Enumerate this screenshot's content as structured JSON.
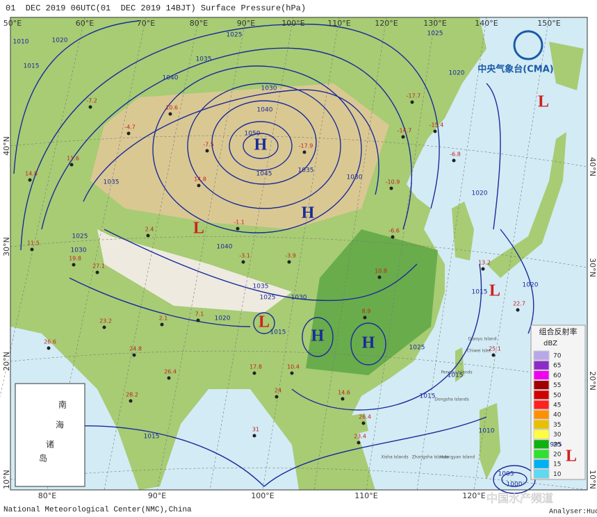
{
  "header": {
    "title": "01  DEC 2019 06UTC(01  DEC 2019 14BJT) Surface Pressure(hPa)"
  },
  "footer": {
    "credit": "National Meteorological Center(NMC),China",
    "analyst": "Analyser:HuoD",
    "watermark": "中国水产频道"
  },
  "logo": {
    "text": "中央气象台(CMA)"
  },
  "axes": {
    "lon_top": [
      "50°E",
      "60°E",
      "70°E",
      "80°E",
      "90°E",
      "100°E",
      "110°E",
      "120°E",
      "130°E",
      "140°E",
      "150°E"
    ],
    "lon_bottom": [
      "80°E",
      "90°E",
      "100°E",
      "110°E",
      "120°E"
    ],
    "lat_left": [
      "40°N",
      "30°N",
      "20°N",
      "10°N"
    ],
    "lat_right": [
      "40°N",
      "30°N",
      "20°N",
      "10°N"
    ]
  },
  "pressure_centers": [
    "H",
    "H",
    "H",
    "H",
    "L",
    "L",
    "L",
    "L",
    "L"
  ],
  "isobar_labels": [
    "1050",
    "1045",
    "1040",
    "1035",
    "1030",
    "1025",
    "1020",
    "1015",
    "1010",
    "1035",
    "1040",
    "1025",
    "1030",
    "1035",
    "1040",
    "1025",
    "1020",
    "1015",
    "1030",
    "1035",
    "1030",
    "1020",
    "1025",
    "1020",
    "1015",
    "1010",
    "1005",
    "1000",
    "995",
    "1015",
    "1020",
    "1025",
    "1015",
    "1015"
  ],
  "station_values": [
    "-7.2",
    "10.6",
    "-4.7",
    "11.6",
    "14.8",
    "-7.5",
    "-17.9",
    "-14.7",
    "-17.7",
    "-15.4",
    "-6.8",
    "14.8",
    "2.4",
    "11.5",
    "19.8",
    "27.1",
    "2.1",
    "7.1",
    "23.2",
    "26.6",
    "24.8",
    "26.4",
    "28.2",
    "17.8",
    "10.4",
    "24",
    "31",
    "14.6",
    "26.4",
    "23.4",
    "22.7",
    "25.1",
    "13.2",
    "10.8",
    "8.9",
    "-10.9",
    "-6.6",
    "-3.9",
    "-3.1",
    "-1.1"
  ],
  "place_labels": [
    "Diaoyu Island",
    "Chiwei Islet",
    "Penghu Islands",
    "Dongsha Islands",
    "Xisha Islands",
    "Zhongsha Islands",
    "Huangyan Island"
  ],
  "inset": {
    "labels": [
      "南",
      "海",
      "诸",
      "岛"
    ]
  },
  "legend": {
    "title": "组合反射率",
    "unit": "dBZ",
    "levels": [
      "70",
      "65",
      "60",
      "55",
      "50",
      "45",
      "40",
      "35",
      "30",
      "25",
      "20",
      "15",
      "10"
    ],
    "colors": [
      "#b8a8e8",
      "#8c2cc8",
      "#f000f0",
      "#a00000",
      "#d00000",
      "#ff2020",
      "#ff9000",
      "#e8c000",
      "#ffff40",
      "#10b010",
      "#30e030",
      "#00b0f0",
      "#60d8f0"
    ]
  }
}
